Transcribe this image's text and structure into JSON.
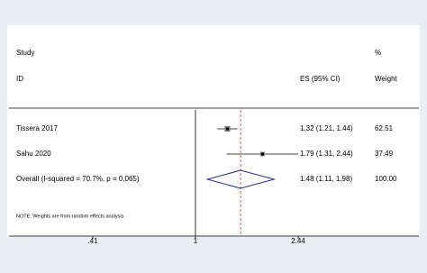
{
  "chart_data": {
    "type": "forest",
    "columns": {
      "study": "Study",
      "id": "ID",
      "es": "ES (95% CI)",
      "pct": "%",
      "weight": "Weight"
    },
    "rows": [
      {
        "name": "Tissera 2017",
        "es": 1.32,
        "lo": 1.21,
        "hi": 1.44,
        "es_label": "1.32 (1.21, 1.44)",
        "weight": 62.51
      },
      {
        "name": "Sahu 2020",
        "es": 1.79,
        "lo": 1.31,
        "hi": 2.44,
        "es_label": "1.79 (1.31, 2.44)",
        "weight": 37.49
      }
    ],
    "overall": {
      "name": "Overall  (I-squared = 70.7%, p = 0.065)",
      "es": 1.48,
      "lo": 1.11,
      "hi": 1.98,
      "es_label": "1.48 (1.11, 1.98)",
      "weight": 100,
      "weight_label": "100.00"
    },
    "note": "NOTE: Weights are from random effects analysis",
    "log_scale": true,
    "null_value": 1,
    "xlim": [
      0.41,
      2.44
    ],
    "xticks": [
      {
        "value": 0.41,
        "label": ".41"
      },
      1,
      2.44
    ],
    "marker_color": "#000000",
    "diamond_color": "#1f2f8a",
    "overall_line_color": "#c0392b"
  }
}
